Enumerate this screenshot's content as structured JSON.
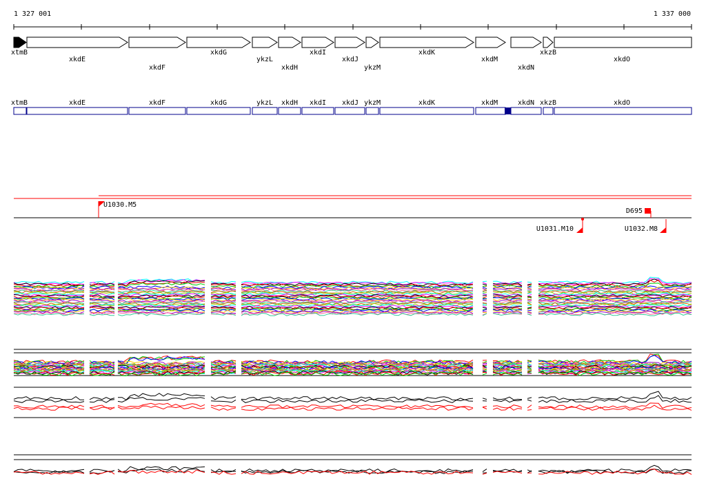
{
  "coords": {
    "start_label": "1 327 001",
    "end_label": "1 337 000"
  },
  "colors": {
    "gene_fill": "#ffffff",
    "gene_stroke": "#000000",
    "first_gene_fill": "#000000",
    "map_blue": "#00008b",
    "feature_red": "#ff0000"
  },
  "genes": [
    {
      "name": "xtmB",
      "dir": "+",
      "filled": true
    },
    {
      "name": "xkdE",
      "dir": "+"
    },
    {
      "name": "xkdF",
      "dir": "+"
    },
    {
      "name": "xkdG",
      "dir": "+"
    },
    {
      "name": "ykzL",
      "dir": "+"
    },
    {
      "name": "xkdH",
      "dir": "+"
    },
    {
      "name": "xkdI",
      "dir": "+"
    },
    {
      "name": "xkdJ",
      "dir": "+"
    },
    {
      "name": "ykzM",
      "dir": "+"
    },
    {
      "name": "xkdK",
      "dir": "+"
    },
    {
      "name": "xkdM",
      "dir": "+"
    },
    {
      "name": "xkdN",
      "dir": "+"
    },
    {
      "name": "xkzB",
      "dir": "+"
    },
    {
      "name": "xkdO",
      "dir": "+"
    }
  ],
  "features": [
    {
      "name": "U1030.M5"
    },
    {
      "name": "D695"
    },
    {
      "name": "U1031.M10"
    },
    {
      "name": "U1032.M8"
    }
  ]
}
